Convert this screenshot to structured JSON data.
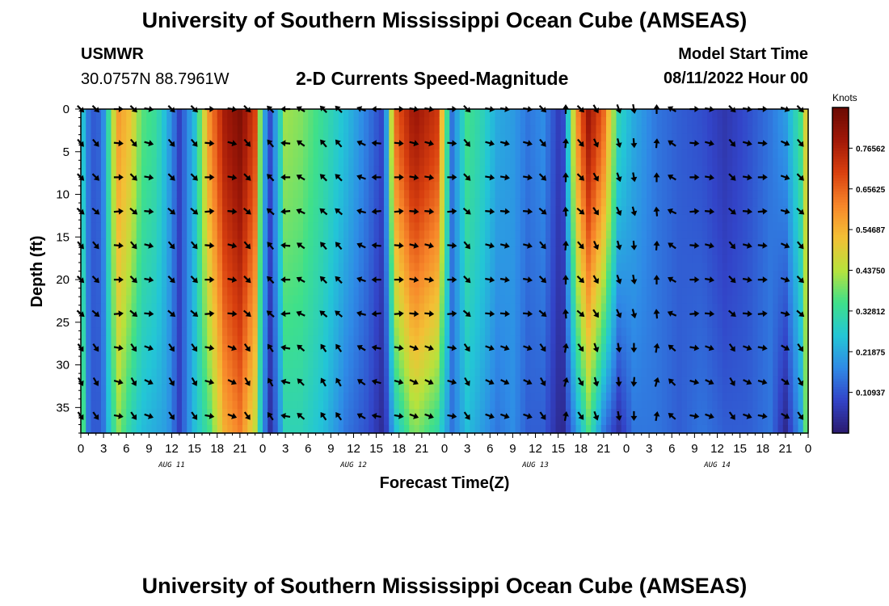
{
  "header": {
    "title": "University of Southern Mississippi Ocean Cube (AMSEAS)",
    "station": "USMWR",
    "coordinates": "30.0757N  88.7961W",
    "subtitle": "2-D Currents Speed-Magnitude",
    "model_start_label": "Model Start Time",
    "model_start_value": "08/11/2022 Hour 00"
  },
  "footer": {
    "title": "University of Southern Mississippi Ocean Cube (AMSEAS)"
  },
  "colors": {
    "colormap": [
      "#2b1a6e",
      "#3244c8",
      "#2f8ae6",
      "#23c6d6",
      "#3fe08a",
      "#b8e23c",
      "#f3c035",
      "#f7862a",
      "#d9400f",
      "#a01808",
      "#6a0a03"
    ]
  },
  "chart_data": {
    "type": "heatmap",
    "title": "2-D Currents Speed-Magnitude",
    "xlabel": "Forecast Time(Z)",
    "ylabel": "Depth (ft)",
    "x_range_hours": [
      0,
      96
    ],
    "x_tick_step_hours": 3,
    "x_tick_labels": [
      "0",
      "3",
      "6",
      "9",
      "12",
      "15",
      "18",
      "21",
      "0",
      "3",
      "6",
      "9",
      "12",
      "15",
      "18",
      "21",
      "0",
      "3",
      "6",
      "9",
      "12",
      "15",
      "18",
      "21",
      "0",
      "3",
      "6",
      "9",
      "12",
      "15",
      "18",
      "21",
      "0"
    ],
    "date_labels": [
      {
        "hour": 12,
        "label": "AUG 11"
      },
      {
        "hour": 36,
        "label": "AUG 12"
      },
      {
        "hour": 60,
        "label": "AUG 13"
      },
      {
        "hour": 84,
        "label": "AUG 14"
      }
    ],
    "y_range_ft": [
      0,
      38
    ],
    "y_ticks": [
      0,
      5,
      10,
      15,
      20,
      25,
      30,
      35
    ],
    "colorbar": {
      "title": "Knots",
      "range": [
        0.0,
        0.875
      ],
      "tick_labels": [
        "0.10937",
        "0.21875",
        "0.32812",
        "0.43750",
        "0.54687",
        "0.65625",
        "0.76562"
      ],
      "tick_values": [
        0.10937,
        0.21875,
        0.32812,
        0.4375,
        0.54687,
        0.65625,
        0.76562
      ]
    },
    "speed_keyframes_knots": [
      {
        "hour": 0,
        "surface": 0.3,
        "bottom": 0.45
      },
      {
        "hour": 1,
        "surface": 0.15,
        "bottom": 0.15
      },
      {
        "hour": 2,
        "surface": 0.1,
        "bottom": 0.1
      },
      {
        "hour": 3,
        "surface": 0.18,
        "bottom": 0.15
      },
      {
        "hour": 4,
        "surface": 0.4,
        "bottom": 0.3
      },
      {
        "hour": 5,
        "surface": 0.58,
        "bottom": 0.4
      },
      {
        "hour": 6.5,
        "surface": 0.52,
        "bottom": 0.3
      },
      {
        "hour": 8,
        "surface": 0.37,
        "bottom": 0.25
      },
      {
        "hour": 10,
        "surface": 0.33,
        "bottom": 0.22
      },
      {
        "hour": 11.5,
        "surface": 0.22,
        "bottom": 0.2
      },
      {
        "hour": 13,
        "surface": 0.08,
        "bottom": 0.08
      },
      {
        "hour": 15,
        "surface": 0.25,
        "bottom": 0.25
      },
      {
        "hour": 17,
        "surface": 0.6,
        "bottom": 0.35
      },
      {
        "hour": 19,
        "surface": 0.78,
        "bottom": 0.55
      },
      {
        "hour": 21,
        "surface": 0.84,
        "bottom": 0.62
      },
      {
        "hour": 23,
        "surface": 0.7,
        "bottom": 0.45
      },
      {
        "hour": 24,
        "surface": 0.25,
        "bottom": 0.2
      },
      {
        "hour": 25,
        "surface": 0.1,
        "bottom": 0.05
      },
      {
        "hour": 26,
        "surface": 0.25,
        "bottom": 0.15
      },
      {
        "hour": 27,
        "surface": 0.42,
        "bottom": 0.3
      },
      {
        "hour": 29,
        "surface": 0.4,
        "bottom": 0.3
      },
      {
        "hour": 32,
        "surface": 0.33,
        "bottom": 0.25
      },
      {
        "hour": 35,
        "surface": 0.25,
        "bottom": 0.15
      },
      {
        "hour": 38,
        "surface": 0.15,
        "bottom": 0.1
      },
      {
        "hour": 40,
        "surface": 0.08,
        "bottom": 0.03
      },
      {
        "hour": 41.5,
        "surface": 0.65,
        "bottom": 0.25
      },
      {
        "hour": 44,
        "surface": 0.8,
        "bottom": 0.4
      },
      {
        "hour": 47,
        "surface": 0.72,
        "bottom": 0.32
      },
      {
        "hour": 49,
        "surface": 0.15,
        "bottom": 0.15
      },
      {
        "hour": 51,
        "surface": 0.35,
        "bottom": 0.25
      },
      {
        "hour": 53,
        "surface": 0.3,
        "bottom": 0.2
      },
      {
        "hour": 55,
        "surface": 0.22,
        "bottom": 0.15
      },
      {
        "hour": 57,
        "surface": 0.2,
        "bottom": 0.18
      },
      {
        "hour": 59,
        "surface": 0.15,
        "bottom": 0.12
      },
      {
        "hour": 61,
        "surface": 0.18,
        "bottom": 0.12
      },
      {
        "hour": 63.5,
        "surface": 0.05,
        "bottom": 0.02
      },
      {
        "hour": 65.5,
        "surface": 0.6,
        "bottom": 0.2
      },
      {
        "hour": 67,
        "surface": 0.8,
        "bottom": 0.35
      },
      {
        "hour": 69,
        "surface": 0.65,
        "bottom": 0.15
      },
      {
        "hour": 71,
        "surface": 0.3,
        "bottom": 0.05
      },
      {
        "hour": 73,
        "surface": 0.22,
        "bottom": 0.15
      },
      {
        "hour": 76,
        "surface": 0.15,
        "bottom": 0.15
      },
      {
        "hour": 79,
        "surface": 0.12,
        "bottom": 0.12
      },
      {
        "hour": 82,
        "surface": 0.1,
        "bottom": 0.15
      },
      {
        "hour": 85,
        "surface": 0.06,
        "bottom": 0.12
      },
      {
        "hour": 88,
        "surface": 0.1,
        "bottom": 0.12
      },
      {
        "hour": 91,
        "surface": 0.15,
        "bottom": 0.15
      },
      {
        "hour": 93,
        "surface": 0.2,
        "bottom": 0.03
      },
      {
        "hour": 95,
        "surface": 0.35,
        "bottom": 0.2
      },
      {
        "hour": 96,
        "surface": 0.55,
        "bottom": 0.45
      }
    ],
    "vector_depths_ft": [
      0,
      4,
      8,
      12,
      16,
      20,
      24,
      28,
      32,
      36
    ],
    "vector_hours": [
      0,
      2,
      5,
      7,
      9,
      12,
      15,
      17,
      20,
      22,
      25,
      27,
      29,
      32,
      34,
      37,
      39,
      42,
      44,
      46,
      49,
      51,
      54,
      56,
      59,
      61,
      64,
      66,
      68,
      71,
      73,
      76,
      78,
      81,
      83,
      86,
      88,
      90,
      93,
      95
    ],
    "vector_directions_deg": [
      135,
      135,
      90,
      135,
      100,
      135,
      135,
      90,
      100,
      135,
      315,
      270,
      300,
      315,
      315,
      290,
      270,
      90,
      100,
      100,
      90,
      135,
      100,
      100,
      100,
      135,
      0,
      135,
      150,
      160,
      170,
      0,
      300,
      90,
      100,
      135,
      100,
      90,
      110,
      135
    ],
    "vector_direction_variation_by_depth_deg": [
      0,
      5,
      0,
      -5,
      5,
      0,
      -5,
      10,
      15,
      10
    ]
  }
}
